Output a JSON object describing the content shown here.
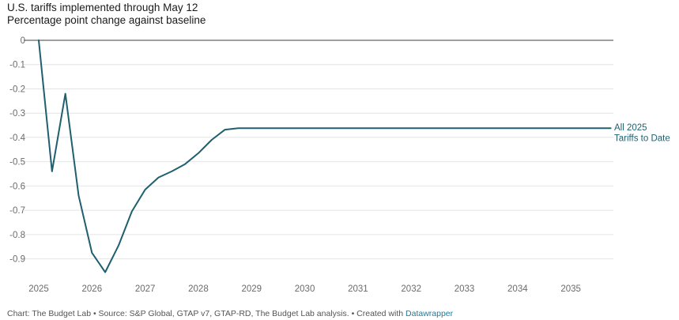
{
  "title": "U.S. tariffs implemented through May 12",
  "subtitle": "Percentage point change against baseline",
  "colors": {
    "line": "#1f5f6e",
    "zero_line": "#666666",
    "grid": "#e4e4e4",
    "tick_text": "#6b6b6b"
  },
  "chart_data": {
    "type": "line",
    "title": "U.S. tariffs implemented through May 12",
    "subtitle": "Percentage point change against baseline",
    "xlabel": "",
    "ylabel": "",
    "xlim": [
      2025,
      2035.8
    ],
    "ylim": [
      -0.96,
      0
    ],
    "x_ticks": [
      "2025",
      "2026",
      "2027",
      "2028",
      "2029",
      "2030",
      "2031",
      "2032",
      "2033",
      "2034",
      "2035"
    ],
    "y_ticks": [
      "0",
      "-0.1",
      "-0.2",
      "-0.3",
      "-0.4",
      "-0.5",
      "-0.6",
      "-0.7",
      "-0.8",
      "-0.9"
    ],
    "grid": true,
    "series": [
      {
        "name": "All 2025 Tariffs to Date",
        "label_lines": [
          "All 2025",
          "Tariffs to Date"
        ],
        "x": [
          2025.0,
          2025.25,
          2025.5,
          2025.75,
          2026.0,
          2026.25,
          2026.5,
          2026.75,
          2027.0,
          2027.25,
          2027.5,
          2027.75,
          2028.0,
          2028.25,
          2028.5,
          2028.75,
          2029.0,
          2029.5,
          2030.0,
          2031.0,
          2032.0,
          2033.0,
          2034.0,
          2035.0,
          2035.75
        ],
        "y": [
          0.0,
          -0.54,
          -0.22,
          -0.64,
          -0.875,
          -0.955,
          -0.845,
          -0.705,
          -0.615,
          -0.565,
          -0.54,
          -0.51,
          -0.465,
          -0.41,
          -0.368,
          -0.362,
          -0.362,
          -0.362,
          -0.362,
          -0.362,
          -0.362,
          -0.362,
          -0.362,
          -0.362,
          -0.362
        ]
      }
    ]
  },
  "footer": {
    "text": "Chart: The Budget Lab • Source: S&P Global, GTAP v7, GTAP-RD, The Budget Lab analysis. • Created with ",
    "link": "Datawrapper"
  }
}
